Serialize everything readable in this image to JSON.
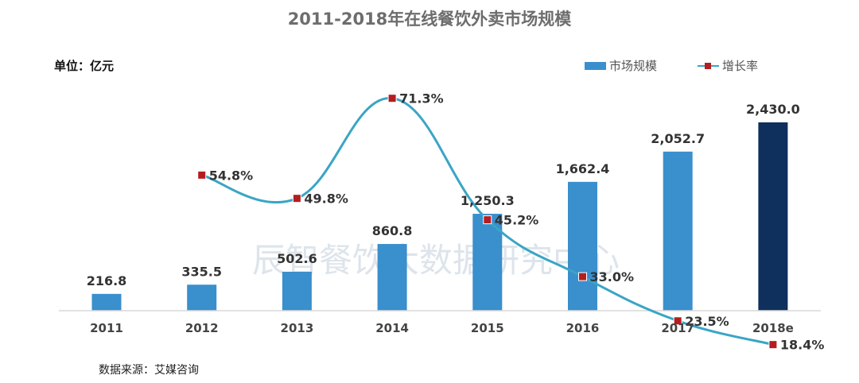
{
  "title": "2011-2018年在线餐饮外卖市场规模",
  "unit_label": "单位：亿元",
  "source_label": "数据来源：艾媒咨询",
  "watermark": "辰智餐饮大数据研究中心",
  "colors": {
    "bar": "#3a8fcd",
    "bar_highlight": "#0f2f5c",
    "line": "#3aa5c5",
    "marker": "#b51d20",
    "axis": "#d9d9d9"
  },
  "chart_data": {
    "type": "bar",
    "categories": [
      "2011",
      "2012",
      "2013",
      "2014",
      "2015",
      "2016",
      "2017",
      "2018e"
    ],
    "series": [
      {
        "name": "市场规模",
        "type": "bar",
        "values": [
          216.8,
          335.5,
          502.6,
          860.8,
          1250.3,
          1662.4,
          2052.7,
          2430.0
        ],
        "labels": [
          "216.8",
          "335.5",
          "502.6",
          "860.8",
          "1,250.3",
          "1,662.4",
          "2,052.7",
          "2,430.0"
        ]
      },
      {
        "name": "增长率",
        "type": "line",
        "values": [
          null,
          54.8,
          49.8,
          71.3,
          45.2,
          33.0,
          23.5,
          18.4
        ],
        "labels": [
          "",
          "54.8%",
          "49.8%",
          "71.3%",
          "45.2%",
          "33.0%",
          "23.5%",
          "18.4%"
        ]
      }
    ],
    "ylim": [
      0,
      2430
    ],
    "legend": "top-right",
    "grid": false
  }
}
